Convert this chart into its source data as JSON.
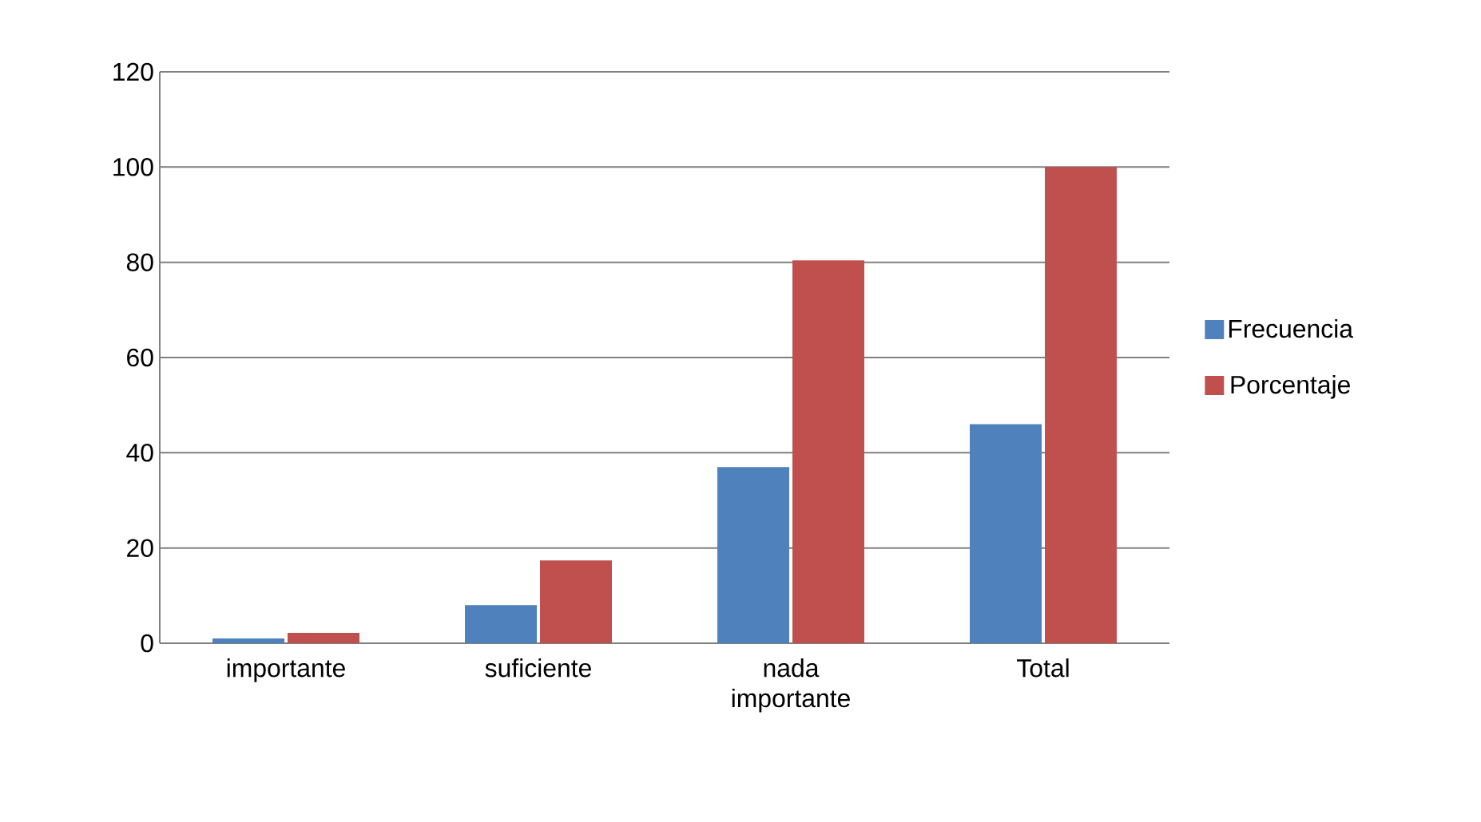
{
  "chart_data": {
    "type": "bar",
    "categories": [
      "importante",
      "suficiente",
      "nada importante",
      "Total"
    ],
    "series": [
      {
        "name": "Frecuencia",
        "color": "#4f81bd",
        "values": [
          1,
          8,
          37,
          46
        ]
      },
      {
        "name": "Porcentaje",
        "color": "#c0504d",
        "values": [
          2.2,
          17.4,
          80.4,
          100
        ]
      }
    ],
    "ylim": [
      0,
      120
    ],
    "yticks": [
      0,
      20,
      40,
      60,
      80,
      100,
      120
    ],
    "grid": "y",
    "legend": "right"
  }
}
